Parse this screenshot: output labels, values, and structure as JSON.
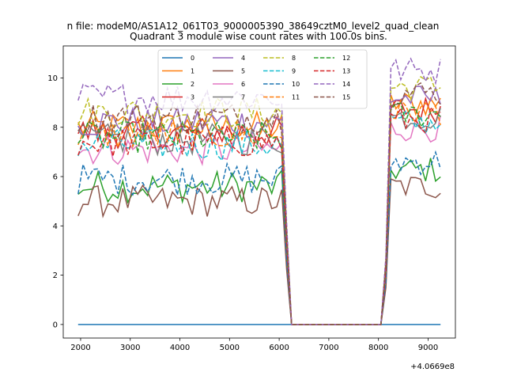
{
  "chart_data": {
    "type": "line",
    "suptitle": "n file: modeM0/AS1A12_061T03_9000005390_38649cztM0_level2_quad_clean",
    "title": "Quadrant 3 module wise count rates with 100.0s bins.",
    "xlabel": "",
    "ylabel": "",
    "x_offset_label": "+4.0669e8",
    "xlim": [
      1650,
      9550
    ],
    "ylim": [
      -0.55,
      11.3
    ],
    "xticks": [
      2000,
      3000,
      4000,
      5000,
      6000,
      7000,
      8000,
      9000
    ],
    "yticks": [
      0,
      2,
      4,
      6,
      8,
      10
    ],
    "legend": {
      "placement": "upper center",
      "columns": 4
    },
    "series": [
      {
        "name": "0",
        "color": "#1f77b4",
        "linestyle": "solid",
        "level": 0.0
      },
      {
        "name": "1",
        "color": "#ff7f0e",
        "linestyle": "solid",
        "level": 8.0
      },
      {
        "name": "2",
        "color": "#2ca02c",
        "linestyle": "solid",
        "level": 5.6
      },
      {
        "name": "3",
        "color": "#d62728",
        "linestyle": "solid",
        "level": 7.8
      },
      {
        "name": "4",
        "color": "#9467bd",
        "linestyle": "solid",
        "level": 8.2
      },
      {
        "name": "5",
        "color": "#8c564b",
        "linestyle": "solid",
        "level": 5.0
      },
      {
        "name": "6",
        "color": "#e377c2",
        "linestyle": "solid",
        "level": 7.1
      },
      {
        "name": "7",
        "color": "#7f7f7f",
        "linestyle": "solid",
        "level": 7.5
      },
      {
        "name": "8",
        "color": "#bcbd22",
        "linestyle": "dashed",
        "level": 8.6
      },
      {
        "name": "9",
        "color": "#17becf",
        "linestyle": "dashed",
        "level": 7.3
      },
      {
        "name": "10",
        "color": "#1f77b4",
        "linestyle": "dashed",
        "level": 5.9
      },
      {
        "name": "11",
        "color": "#ff7f0e",
        "linestyle": "dashed",
        "level": 7.7
      },
      {
        "name": "12",
        "color": "#2ca02c",
        "linestyle": "dashed",
        "level": 7.6
      },
      {
        "name": "13",
        "color": "#d62728",
        "linestyle": "dashed",
        "level": 7.4
      },
      {
        "name": "14",
        "color": "#9467bd",
        "linestyle": "dashed",
        "level": 9.2
      },
      {
        "name": "15",
        "color": "#8c564b",
        "linestyle": "dashed",
        "level": 8.4
      }
    ],
    "time_bins": {
      "start": 1950,
      "step": 100,
      "active_1_end": 6050,
      "drop_end": 6250,
      "gap_end": 8050,
      "rise_start": 8150,
      "active_2_end": 9250
    }
  }
}
